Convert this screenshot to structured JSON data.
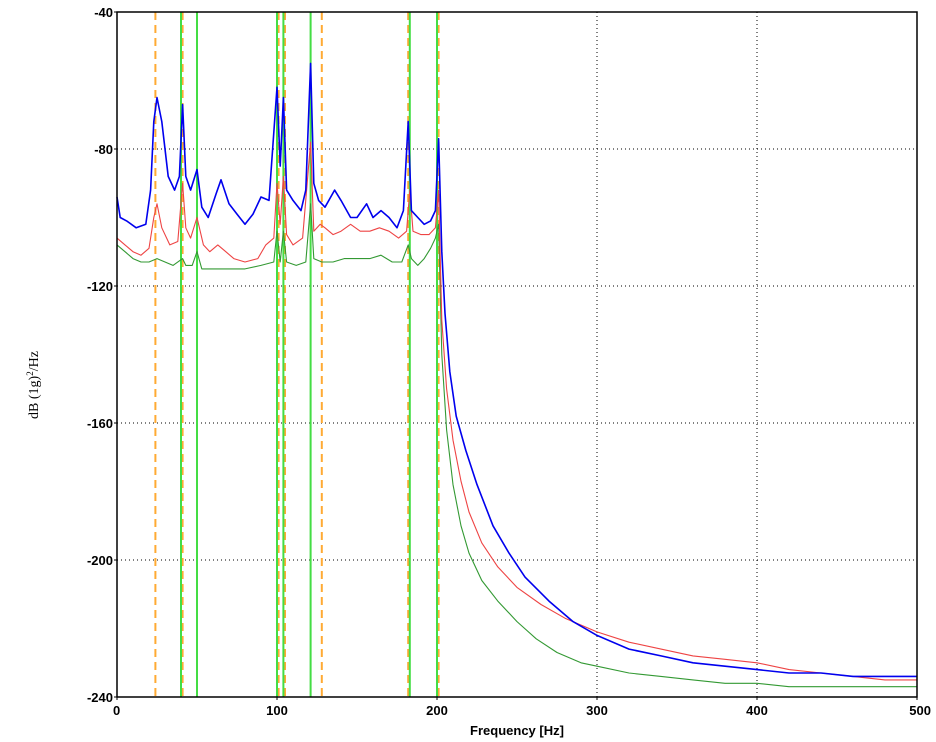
{
  "chart_data": {
    "type": "line",
    "title": "",
    "xlabel": "Frequency [Hz]",
    "ylabel_prefix": "dB (1g)",
    "ylabel_sup": "2",
    "ylabel_suffix": "/Hz",
    "xlim": [
      0,
      500
    ],
    "ylim": [
      -240,
      -40
    ],
    "xticks": [
      "0",
      "100",
      "200",
      "300",
      "400",
      "500"
    ],
    "yticks": [
      "-40",
      "-80",
      "-120",
      "-160",
      "-200",
      "-240"
    ],
    "grid": true,
    "legend": "none",
    "colors": {
      "blue": "#0000ee",
      "red": "#ee4444",
      "green": "#339933",
      "marker_green": "#44dd44",
      "marker_orange": "#ffaa33"
    },
    "markers_green": [
      40,
      50,
      100,
      104,
      121,
      183,
      200
    ],
    "markers_orange": [
      24,
      41,
      101,
      105,
      128,
      182,
      201
    ],
    "series": [
      {
        "color": "blue",
        "points": [
          [
            0,
            -94
          ],
          [
            2,
            -100
          ],
          [
            6,
            -101
          ],
          [
            12,
            -103
          ],
          [
            18,
            -102
          ],
          [
            21,
            -92
          ],
          [
            23,
            -72
          ],
          [
            25,
            -65
          ],
          [
            28,
            -72
          ],
          [
            32,
            -88
          ],
          [
            36,
            -92
          ],
          [
            39,
            -88
          ],
          [
            41,
            -67
          ],
          [
            43,
            -88
          ],
          [
            46,
            -92
          ],
          [
            50,
            -86
          ],
          [
            53,
            -97
          ],
          [
            57,
            -100
          ],
          [
            62,
            -93
          ],
          [
            65,
            -89
          ],
          [
            70,
            -96
          ],
          [
            75,
            -99
          ],
          [
            80,
            -102
          ],
          [
            85,
            -99
          ],
          [
            90,
            -94
          ],
          [
            95,
            -95
          ],
          [
            100,
            -62
          ],
          [
            102,
            -85
          ],
          [
            104,
            -65
          ],
          [
            106,
            -92
          ],
          [
            110,
            -95
          ],
          [
            115,
            -98
          ],
          [
            118,
            -92
          ],
          [
            121,
            -55
          ],
          [
            123,
            -90
          ],
          [
            126,
            -95
          ],
          [
            130,
            -97
          ],
          [
            136,
            -92
          ],
          [
            140,
            -95
          ],
          [
            146,
            -100
          ],
          [
            150,
            -100
          ],
          [
            156,
            -96
          ],
          [
            160,
            -100
          ],
          [
            165,
            -98
          ],
          [
            170,
            -100
          ],
          [
            175,
            -103
          ],
          [
            179,
            -98
          ],
          [
            182,
            -72
          ],
          [
            184,
            -98
          ],
          [
            188,
            -100
          ],
          [
            192,
            -102
          ],
          [
            196,
            -101
          ],
          [
            199,
            -98
          ],
          [
            201,
            -77
          ],
          [
            203,
            -110
          ],
          [
            205,
            -128
          ],
          [
            208,
            -145
          ],
          [
            212,
            -158
          ],
          [
            218,
            -168
          ],
          [
            225,
            -178
          ],
          [
            235,
            -190
          ],
          [
            245,
            -198
          ],
          [
            255,
            -205
          ],
          [
            270,
            -212
          ],
          [
            285,
            -218
          ],
          [
            300,
            -222
          ],
          [
            320,
            -226
          ],
          [
            340,
            -228
          ],
          [
            360,
            -230
          ],
          [
            380,
            -231
          ],
          [
            400,
            -232
          ],
          [
            420,
            -233
          ],
          [
            440,
            -233
          ],
          [
            460,
            -234
          ],
          [
            480,
            -234
          ],
          [
            500,
            -234
          ]
        ]
      },
      {
        "color": "red",
        "points": [
          [
            0,
            -106
          ],
          [
            5,
            -108
          ],
          [
            10,
            -110
          ],
          [
            15,
            -111
          ],
          [
            20,
            -109
          ],
          [
            23,
            -100
          ],
          [
            25,
            -96
          ],
          [
            28,
            -103
          ],
          [
            33,
            -108
          ],
          [
            38,
            -107
          ],
          [
            41,
            -90
          ],
          [
            43,
            -103
          ],
          [
            46,
            -106
          ],
          [
            50,
            -100
          ],
          [
            54,
            -108
          ],
          [
            58,
            -110
          ],
          [
            63,
            -108
          ],
          [
            68,
            -110
          ],
          [
            73,
            -112
          ],
          [
            80,
            -113
          ],
          [
            88,
            -112
          ],
          [
            93,
            -108
          ],
          [
            98,
            -106
          ],
          [
            100,
            -90
          ],
          [
            102,
            -102
          ],
          [
            104,
            -88
          ],
          [
            106,
            -105
          ],
          [
            110,
            -108
          ],
          [
            116,
            -106
          ],
          [
            121,
            -78
          ],
          [
            123,
            -104
          ],
          [
            127,
            -102
          ],
          [
            130,
            -103
          ],
          [
            135,
            -105
          ],
          [
            140,
            -104
          ],
          [
            146,
            -102
          ],
          [
            152,
            -104
          ],
          [
            158,
            -104
          ],
          [
            164,
            -103
          ],
          [
            170,
            -104
          ],
          [
            176,
            -106
          ],
          [
            181,
            -104
          ],
          [
            183,
            -92
          ],
          [
            185,
            -104
          ],
          [
            190,
            -105
          ],
          [
            195,
            -105
          ],
          [
            199,
            -103
          ],
          [
            201,
            -92
          ],
          [
            203,
            -130
          ],
          [
            206,
            -150
          ],
          [
            210,
            -165
          ],
          [
            215,
            -177
          ],
          [
            220,
            -186
          ],
          [
            228,
            -195
          ],
          [
            238,
            -202
          ],
          [
            250,
            -208
          ],
          [
            265,
            -213
          ],
          [
            280,
            -217
          ],
          [
            300,
            -221
          ],
          [
            320,
            -224
          ],
          [
            340,
            -226
          ],
          [
            360,
            -228
          ],
          [
            380,
            -229
          ],
          [
            400,
            -230
          ],
          [
            420,
            -232
          ],
          [
            440,
            -233
          ],
          [
            460,
            -234
          ],
          [
            480,
            -235
          ],
          [
            500,
            -235
          ]
        ]
      },
      {
        "color": "green",
        "points": [
          [
            0,
            -108
          ],
          [
            5,
            -110
          ],
          [
            10,
            -112
          ],
          [
            15,
            -113
          ],
          [
            20,
            -113
          ],
          [
            25,
            -112
          ],
          [
            30,
            -113
          ],
          [
            35,
            -114
          ],
          [
            41,
            -112
          ],
          [
            43,
            -114
          ],
          [
            47,
            -114
          ],
          [
            50,
            -110
          ],
          [
            53,
            -115
          ],
          [
            58,
            -115
          ],
          [
            65,
            -115
          ],
          [
            72,
            -115
          ],
          [
            80,
            -115
          ],
          [
            90,
            -114
          ],
          [
            98,
            -113
          ],
          [
            100,
            -104
          ],
          [
            102,
            -113
          ],
          [
            104,
            -104
          ],
          [
            106,
            -113
          ],
          [
            112,
            -114
          ],
          [
            118,
            -113
          ],
          [
            121,
            -96
          ],
          [
            123,
            -112
          ],
          [
            128,
            -113
          ],
          [
            135,
            -113
          ],
          [
            142,
            -112
          ],
          [
            150,
            -112
          ],
          [
            158,
            -112
          ],
          [
            165,
            -111
          ],
          [
            172,
            -113
          ],
          [
            178,
            -113
          ],
          [
            182,
            -108
          ],
          [
            184,
            -112
          ],
          [
            188,
            -114
          ],
          [
            192,
            -112
          ],
          [
            196,
            -109
          ],
          [
            199,
            -106
          ],
          [
            201,
            -102
          ],
          [
            203,
            -140
          ],
          [
            206,
            -162
          ],
          [
            210,
            -178
          ],
          [
            215,
            -190
          ],
          [
            220,
            -198
          ],
          [
            228,
            -206
          ],
          [
            238,
            -212
          ],
          [
            250,
            -218
          ],
          [
            262,
            -223
          ],
          [
            275,
            -227
          ],
          [
            290,
            -230
          ],
          [
            300,
            -231
          ],
          [
            320,
            -233
          ],
          [
            340,
            -234
          ],
          [
            360,
            -235
          ],
          [
            380,
            -236
          ],
          [
            400,
            -236
          ],
          [
            420,
            -237
          ],
          [
            440,
            -237
          ],
          [
            460,
            -237
          ],
          [
            480,
            -237
          ],
          [
            500,
            -237
          ]
        ]
      }
    ]
  }
}
